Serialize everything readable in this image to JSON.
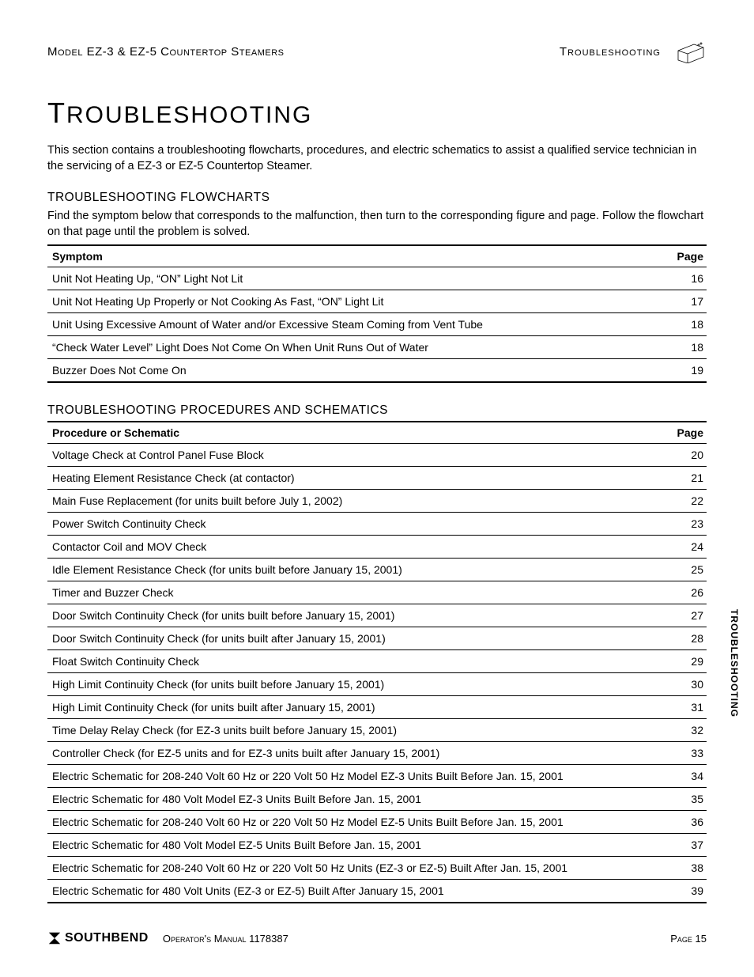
{
  "header": {
    "left": "Model EZ-3 & EZ-5 Countertop Steamers",
    "right": "Troubleshooting"
  },
  "title": "Troubleshooting",
  "intro": "This section contains a troubleshooting flowcharts, procedures, and electric schematics to assist a qualified service technician in the servicing of a EZ-3 or EZ-5 Countertop Steamer.",
  "section1": {
    "heading": "TROUBLESHOOTING FLOWCHARTS",
    "desc": "Find the symptom below that corresponds to the malfunction, then turn to the corresponding figure and page. Follow the flowchart on that page until the problem is solved.",
    "col1": "Symptom",
    "col2": "Page",
    "rows": [
      {
        "symptom": "Unit Not Heating Up, “ON” Light Not Lit",
        "page": "16"
      },
      {
        "symptom": "Unit Not Heating Up Properly or Not Cooking As Fast, “ON” Light Lit",
        "page": "17"
      },
      {
        "symptom": "Unit Using Excessive Amount of Water and/or Excessive Steam Coming from Vent Tube",
        "page": "18"
      },
      {
        "symptom": "“Check Water Level” Light Does Not Come On When Unit Runs Out of Water",
        "page": "18"
      },
      {
        "symptom": "Buzzer Does Not Come On",
        "page": "19"
      }
    ]
  },
  "section2": {
    "heading": "TROUBLESHOOTING PROCEDURES AND SCHEMATICS",
    "col1": "Procedure or Schematic",
    "col2": "Page",
    "rows": [
      {
        "item": "Voltage Check at Control Panel Fuse Block",
        "page": "20"
      },
      {
        "item": "Heating Element Resistance Check (at contactor)",
        "page": "21"
      },
      {
        "item": "Main Fuse Replacement (for units built before July 1, 2002)",
        "page": "22"
      },
      {
        "item": "Power Switch Continuity Check",
        "page": "23"
      },
      {
        "item": "Contactor Coil and MOV Check",
        "page": "24"
      },
      {
        "item": "Idle Element Resistance Check (for units built before January 15, 2001)",
        "page": "25"
      },
      {
        "item": "Timer and Buzzer Check",
        "page": "26"
      },
      {
        "item": "Door Switch Continuity Check (for units built before January 15, 2001)",
        "page": "27"
      },
      {
        "item": "Door Switch Continuity Check (for units built after January 15, 2001)",
        "page": "28"
      },
      {
        "item": "Float Switch Continuity Check",
        "page": "29"
      },
      {
        "item": "High Limit Continuity Check (for units built before January 15, 2001)",
        "page": "30"
      },
      {
        "item": "High Limit Continuity Check (for units built after January 15, 2001)",
        "page": "31"
      },
      {
        "item": "Time Delay Relay Check (for EZ-3 units built before January 15, 2001)",
        "page": "32"
      },
      {
        "item": "Controller Check (for EZ-5 units and for EZ-3 units built after January 15, 2001)",
        "page": "33"
      },
      {
        "item": "Electric Schematic for 208-240 Volt 60 Hz or 220 Volt 50 Hz Model EZ-3 Units Built Before Jan. 15, 2001",
        "page": "34"
      },
      {
        "item": "Electric Schematic for 480 Volt Model EZ-3 Units Built Before Jan. 15, 2001",
        "page": "35"
      },
      {
        "item": "Electric Schematic for 208-240 Volt 60 Hz or 220 Volt 50 Hz Model EZ-5 Units Built Before Jan. 15, 2001",
        "page": "36"
      },
      {
        "item": "Electric Schematic for 480 Volt Model EZ-5 Units Built Before Jan. 15, 2001",
        "page": "37"
      },
      {
        "item": "Electric Schematic for 208-240 Volt 60 Hz or 220 Volt 50 Hz Units (EZ-3 or EZ-5) Built After Jan. 15, 2001",
        "page": "38"
      },
      {
        "item": "Electric Schematic for 480 Volt Units (EZ-3 or EZ-5) Built After January 15, 2001",
        "page": "39"
      }
    ]
  },
  "sideTab": "TROUBLESHOOTING",
  "footer": {
    "brand": "SOUTHBEND",
    "mid": "Operator's Manual 1178387",
    "page": "Page 15"
  }
}
